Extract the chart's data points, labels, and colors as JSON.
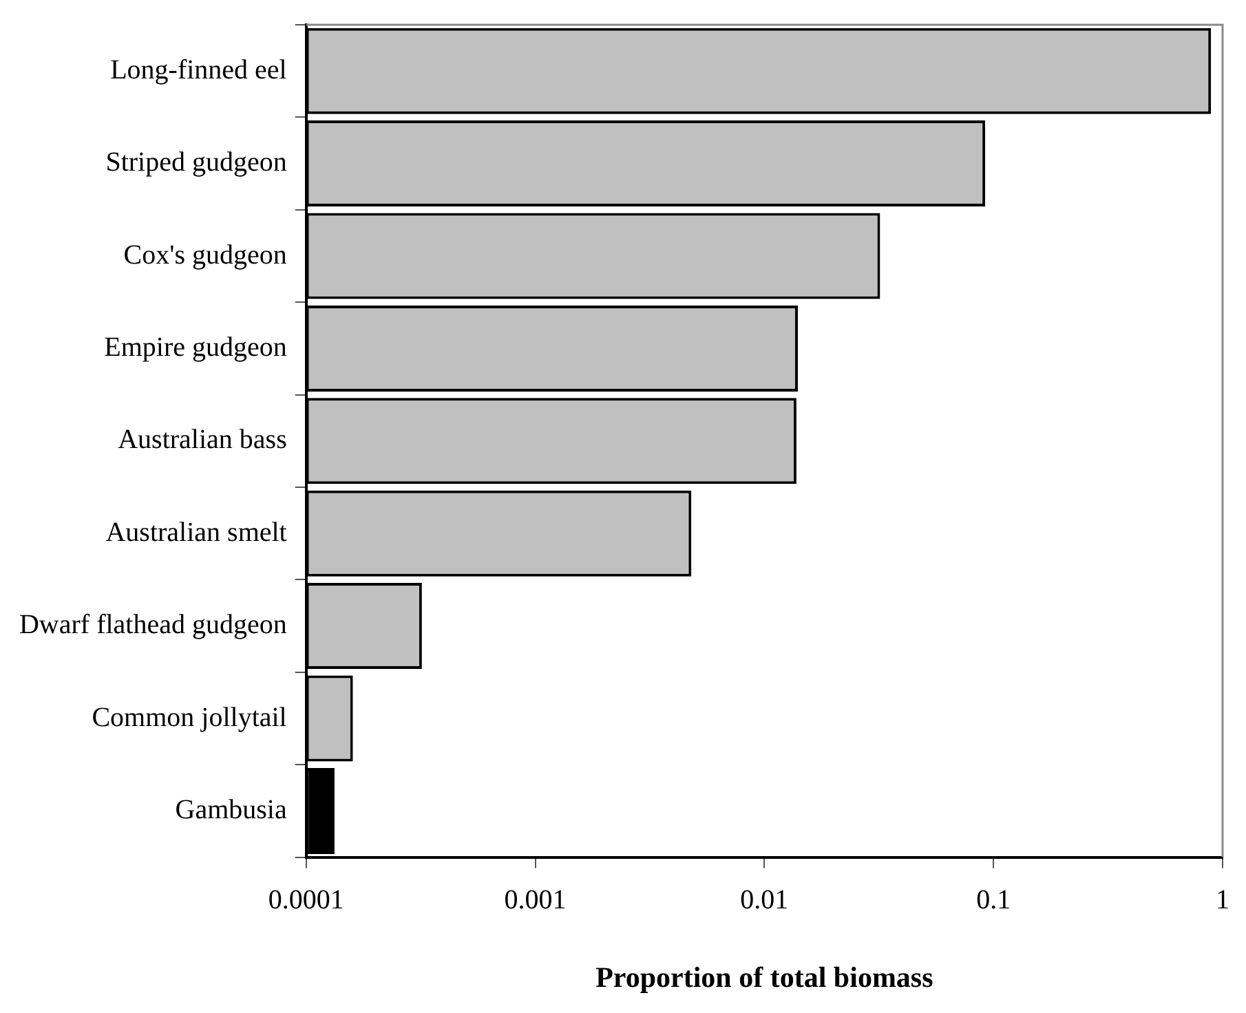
{
  "chart_data": {
    "type": "bar",
    "orientation": "horizontal",
    "log": "x",
    "xlabel": "Proportion of total biomass",
    "categories": [
      "Long-finned eel",
      "Striped gudgeon",
      "Cox's gudgeon",
      "Empire gudgeon",
      "Australian bass",
      "Australian smelt",
      "Dwarf flathead gudgeon",
      "Common jollytail",
      "Gambusia"
    ],
    "values": [
      0.89,
      0.092,
      0.032,
      0.014,
      0.0138,
      0.0048,
      0.00032,
      0.00016,
      0.000133
    ],
    "colors": [
      "#c0c0c0",
      "#c0c0c0",
      "#c0c0c0",
      "#c0c0c0",
      "#c0c0c0",
      "#c0c0c0",
      "#c0c0c0",
      "#c0c0c0",
      "#000000"
    ],
    "xlim": [
      0.0001,
      1
    ],
    "xticks": [
      0.0001,
      0.001,
      0.01,
      0.1,
      1
    ],
    "grid": false,
    "legend": false
  }
}
